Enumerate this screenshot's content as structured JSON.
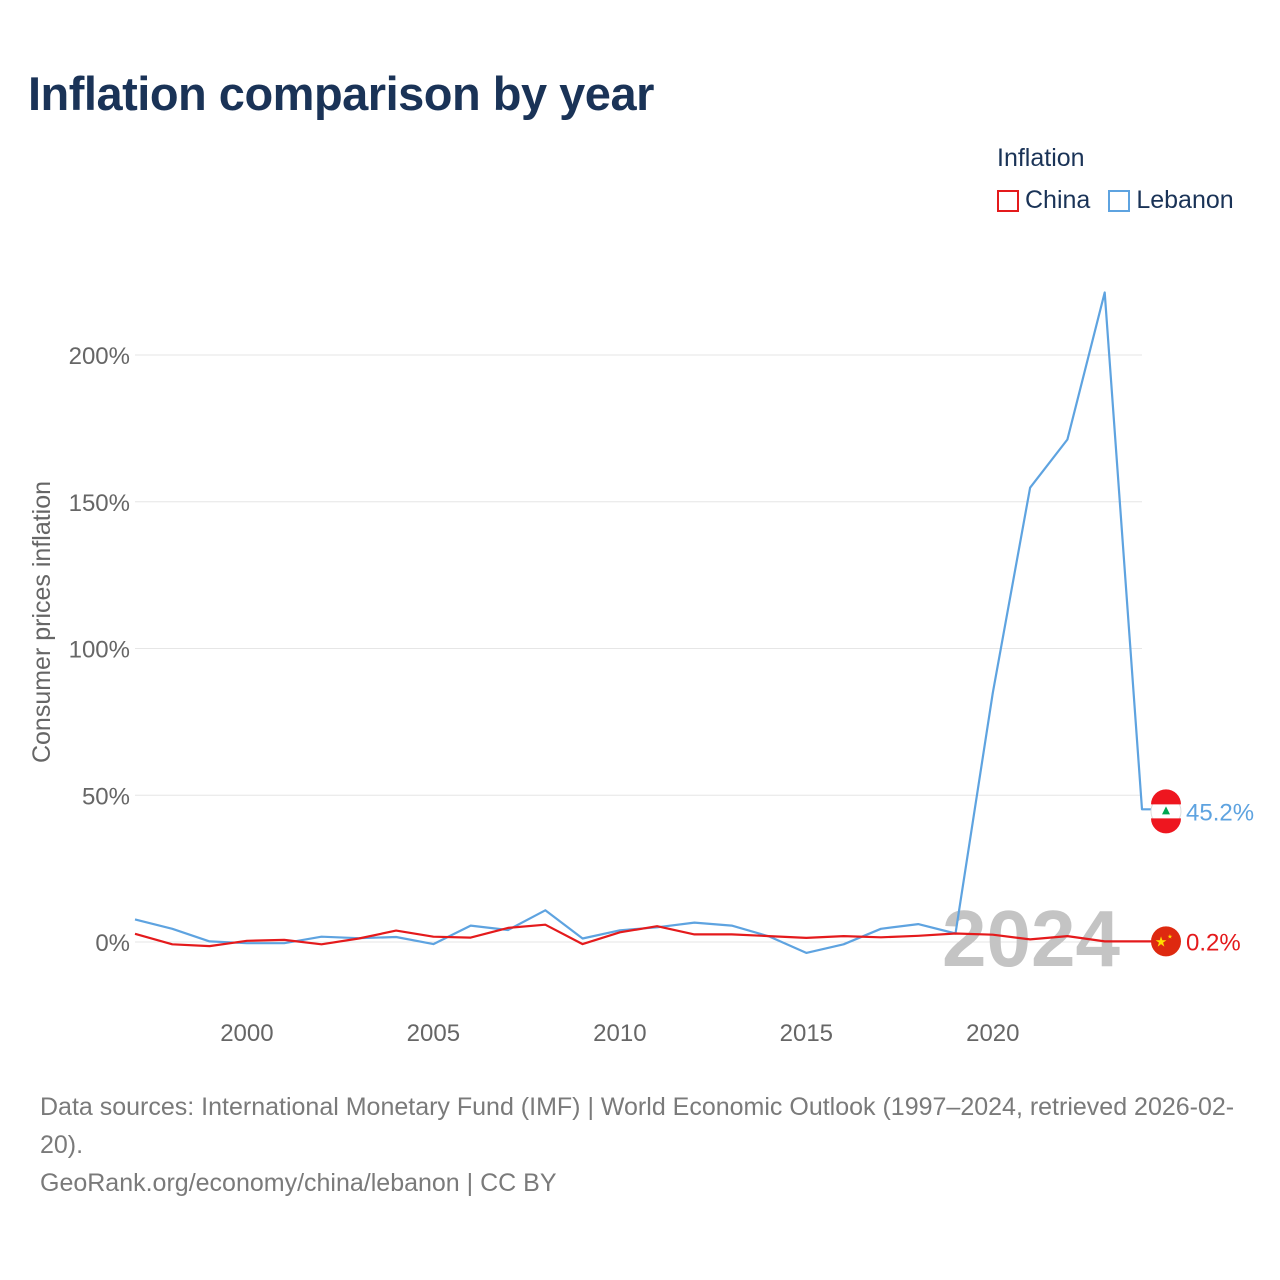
{
  "title": "Inflation comparison by year",
  "legend": {
    "title": "Inflation",
    "items": [
      {
        "label": "China",
        "color": "#e41a1c"
      },
      {
        "label": "Lebanon",
        "color": "#5ea3e0"
      }
    ]
  },
  "chart_data": {
    "type": "line",
    "title": "Inflation comparison by year",
    "ylabel": "Consumer prices inflation",
    "xlabel": "",
    "x": [
      1997,
      1998,
      1999,
      2000,
      2001,
      2002,
      2003,
      2004,
      2005,
      2006,
      2007,
      2008,
      2009,
      2010,
      2011,
      2012,
      2013,
      2014,
      2015,
      2016,
      2017,
      2018,
      2019,
      2020,
      2021,
      2022,
      2023,
      2024
    ],
    "xlim": [
      1997,
      2024
    ],
    "ylim": [
      -20,
      225
    ],
    "xticks": [
      2000,
      2005,
      2010,
      2015,
      2020
    ],
    "yticks": [
      0,
      50,
      100,
      150,
      200
    ],
    "ytick_labels": [
      "0%",
      "50%",
      "100%",
      "150%",
      "200%"
    ],
    "grid": true,
    "year_watermark": "2024",
    "series": [
      {
        "name": "China",
        "color": "#e41a1c",
        "values": [
          2.8,
          -0.8,
          -1.4,
          0.4,
          0.7,
          -0.8,
          1.2,
          3.9,
          1.8,
          1.5,
          4.8,
          5.9,
          -0.7,
          3.3,
          5.4,
          2.6,
          2.6,
          2.0,
          1.4,
          2.0,
          1.6,
          2.1,
          2.9,
          2.5,
          0.9,
          2.0,
          0.2,
          0.2
        ],
        "end_label": "0.2%"
      },
      {
        "name": "Lebanon",
        "color": "#5ea3e0",
        "values": [
          7.7,
          4.5,
          0.2,
          -0.4,
          -0.4,
          1.8,
          1.3,
          1.7,
          -0.7,
          5.6,
          4.1,
          10.8,
          1.2,
          4.0,
          5.0,
          6.6,
          5.6,
          1.9,
          -3.7,
          -0.8,
          4.5,
          6.1,
          2.9,
          84.9,
          154.8,
          171.2,
          221.3,
          45.2
        ],
        "end_label": "45.2%"
      }
    ]
  },
  "footer": {
    "sources": "Data sources: International Monetary Fund (IMF) | World Economic Outlook (1997–2024, retrieved 2026-02-20).",
    "credit": "GeoRank.org/economy/china/lebanon | CC BY"
  }
}
